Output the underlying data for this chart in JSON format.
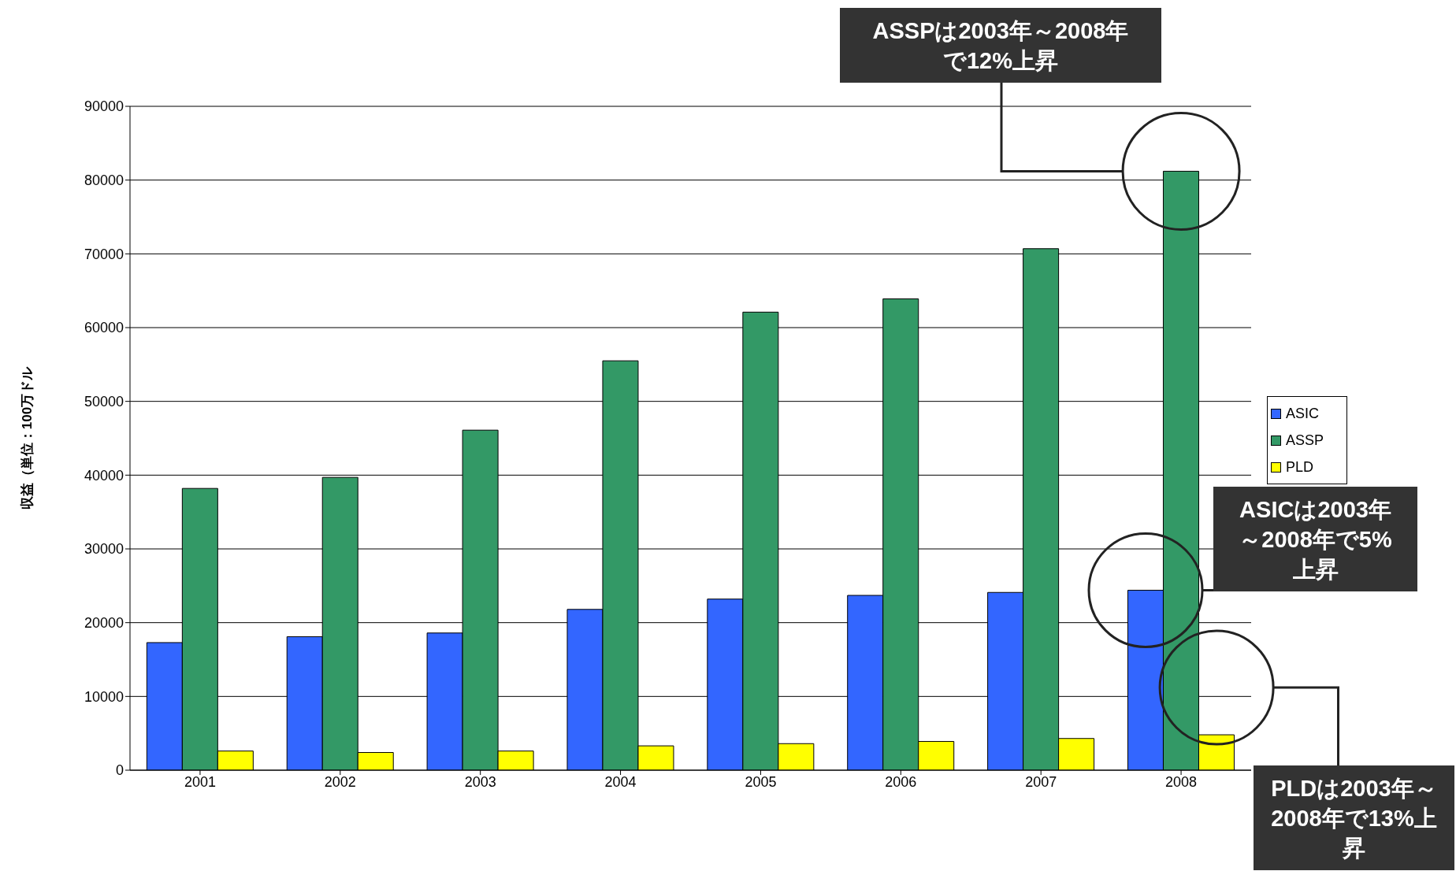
{
  "chart_data": {
    "type": "bar",
    "ylabel": "収益（単位：100万ドル",
    "categories": [
      "2001",
      "2002",
      "2003",
      "2004",
      "2005",
      "2006",
      "2007",
      "2008"
    ],
    "series": [
      {
        "name": "ASIC",
        "color": "#3366ff",
        "values": [
          17300,
          18100,
          18600,
          21800,
          23200,
          23700,
          24100,
          24400
        ]
      },
      {
        "name": "ASSP",
        "color": "#339966",
        "values": [
          38200,
          39700,
          46100,
          55500,
          62100,
          63900,
          70700,
          81200
        ]
      },
      {
        "name": "PLD",
        "color": "#ffff00",
        "values": [
          2600,
          2400,
          2600,
          3300,
          3600,
          3900,
          4300,
          4800
        ]
      }
    ],
    "ylim": [
      0,
      90000
    ],
    "yticks": [
      0,
      10000,
      20000,
      30000,
      40000,
      50000,
      60000,
      70000,
      80000,
      90000
    ],
    "grid": "y",
    "legend": "right",
    "annotations": [
      "ASSPは2003年～2008年で12%上昇",
      "ASICは2003年～2008年で5%上昇",
      "PLDは2003年～2008年で13%上昇"
    ]
  }
}
